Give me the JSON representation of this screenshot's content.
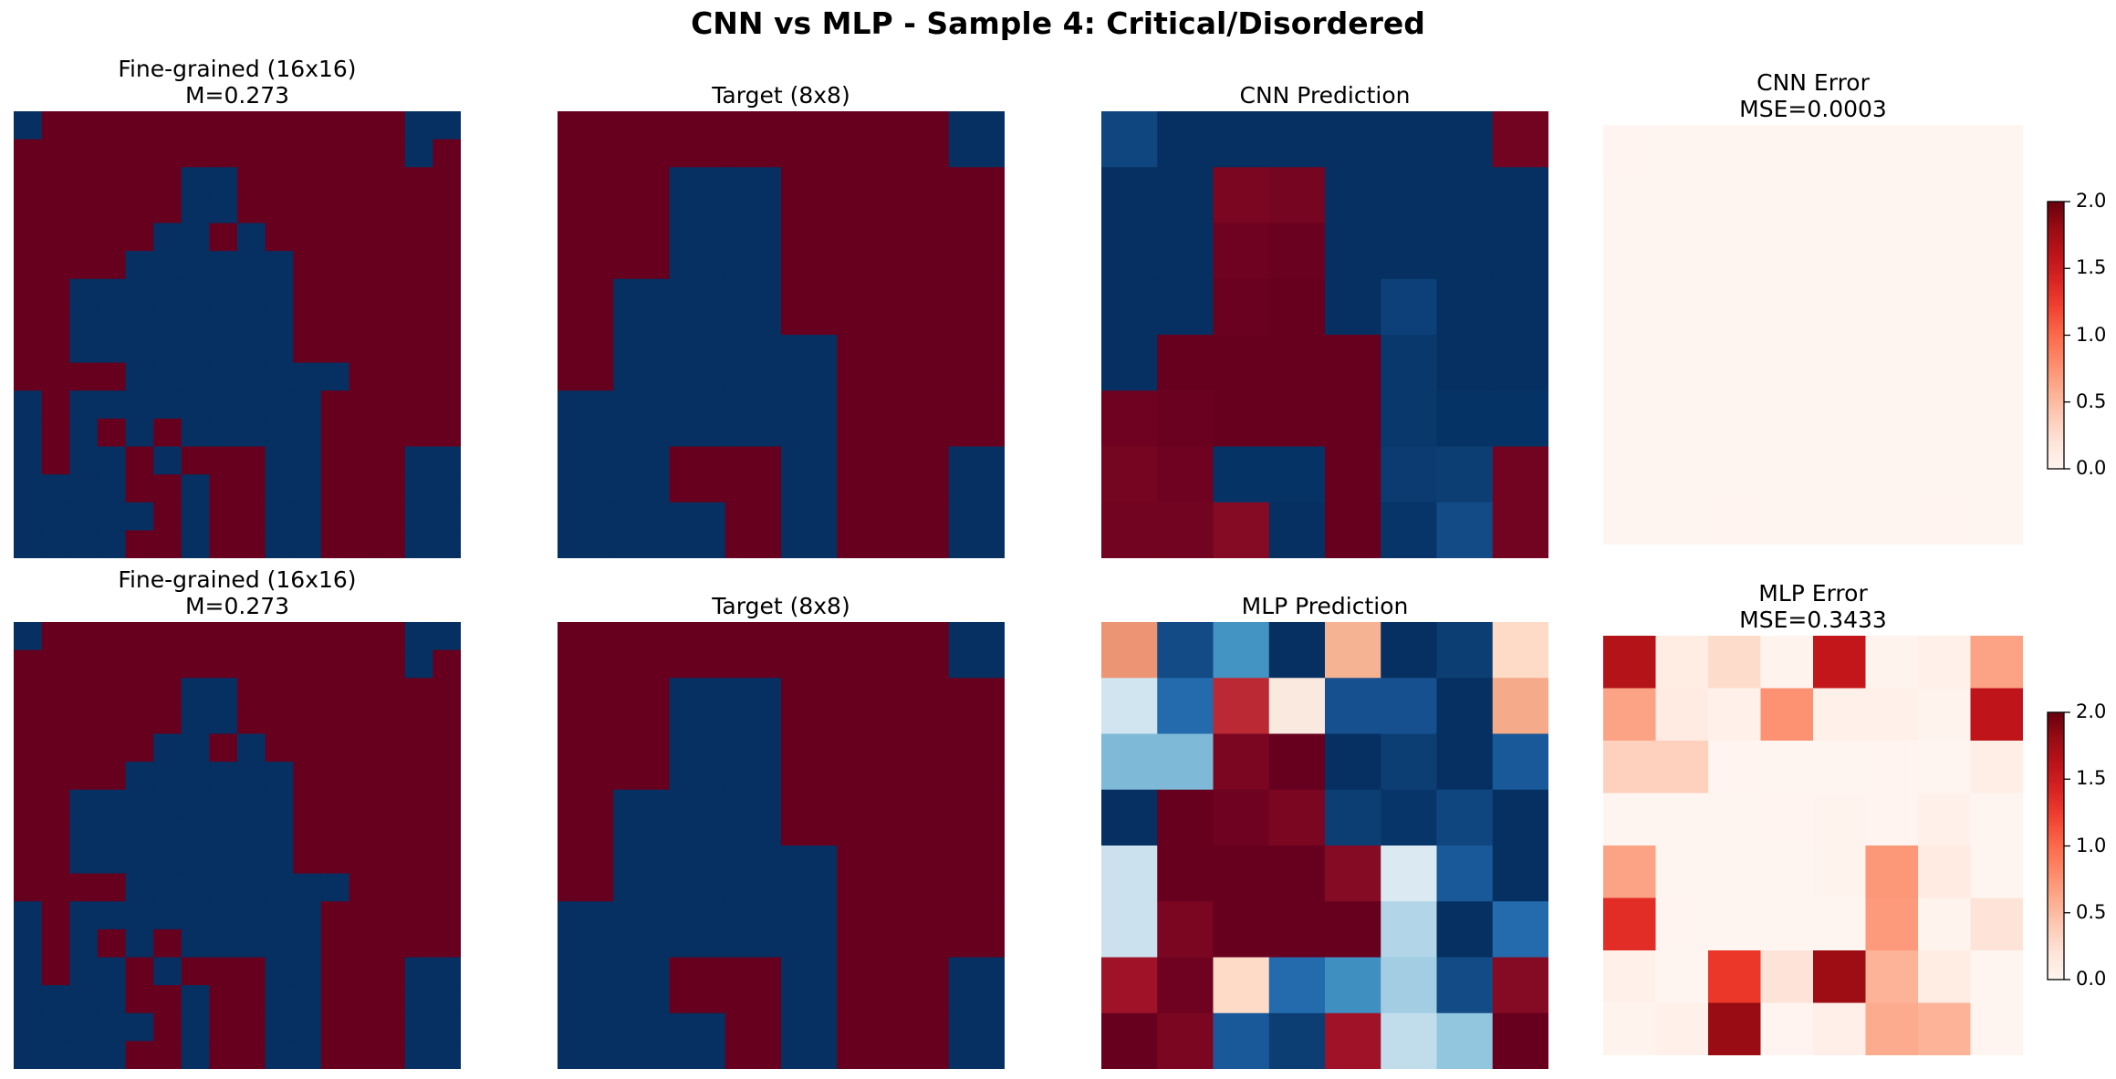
{
  "suptitle": "CNN vs MLP - Sample 4: Critical/Disordered",
  "fine_grid_16": [
    "1000000000000011",
    "0000000000000010",
    "0000001100000000",
    "0000001100000000",
    "0000011010000000",
    "0000111111000000",
    "0011111111000000",
    "0011111111000000",
    "0011111111000000",
    "0000111111110000",
    "1011111111100000",
    "1010101111100000",
    "1011010001100011",
    "1111001001100011",
    "1111101001100011",
    "1111001001100011"
  ],
  "target_grid_8": [
    "00000001",
    "00110000",
    "00110000",
    "01110000",
    "01111000",
    "11111000",
    "11001001",
    "11101001"
  ],
  "cnn_pred_grid": [
    [
      -0.92,
      -1,
      -1,
      -1,
      -1,
      -1,
      -1,
      0.97
    ],
    [
      -1,
      -1,
      0.95,
      0.96,
      -1,
      -1,
      -1,
      -1
    ],
    [
      -1,
      -1,
      0.98,
      0.99,
      -1,
      -1,
      -1,
      -1
    ],
    [
      -1,
      -1,
      0.99,
      1,
      -1,
      -0.94,
      -1,
      -1
    ],
    [
      -1,
      1,
      1,
      1,
      1,
      -0.97,
      -1,
      -1
    ],
    [
      0.98,
      0.99,
      1,
      1,
      1,
      -0.97,
      -0.99,
      -0.99
    ],
    [
      0.96,
      0.98,
      -0.99,
      -0.99,
      1,
      -0.96,
      -0.95,
      0.97
    ],
    [
      0.97,
      0.97,
      0.92,
      -1,
      1,
      -0.98,
      -0.9,
      0.97
    ]
  ],
  "mlp_pred_grid": [
    [
      0.45,
      -0.9,
      -0.6,
      -1,
      0.35,
      -1,
      -0.95,
      0.2
    ],
    [
      -0.2,
      -0.78,
      0.75,
      0.1,
      -0.88,
      -0.88,
      -1,
      0.38
    ],
    [
      -0.45,
      -0.45,
      0.95,
      1,
      -1,
      -0.95,
      -1,
      -0.85
    ],
    [
      -1,
      1,
      0.98,
      0.95,
      -0.95,
      -0.98,
      -0.92,
      -1
    ],
    [
      -0.22,
      1,
      1,
      1,
      0.92,
      -0.15,
      -0.85,
      -1
    ],
    [
      -0.22,
      0.95,
      1,
      1,
      1,
      -0.3,
      -1,
      -0.78
    ],
    [
      0.85,
      0.98,
      0.2,
      -0.78,
      -0.62,
      -0.35,
      -0.9,
      0.92
    ],
    [
      1,
      0.95,
      -0.85,
      -0.95,
      0.85,
      -0.25,
      -0.4,
      1
    ]
  ],
  "cnn_err_grid": [
    [
      0.006,
      0,
      0,
      0,
      0,
      0,
      0,
      0.001
    ],
    [
      0,
      0,
      0.003,
      0.002,
      0,
      0,
      0,
      0
    ],
    [
      0,
      0,
      0,
      0,
      0,
      0,
      0,
      0
    ],
    [
      0,
      0,
      0,
      0,
      0.003,
      0.004,
      0,
      0
    ],
    [
      0,
      0,
      0,
      0,
      0,
      0.001,
      0,
      0
    ],
    [
      0.001,
      0,
      0,
      0,
      0,
      0.001,
      0,
      0
    ],
    [
      0.002,
      0,
      0,
      0,
      0,
      0.002,
      0.003,
      0.001
    ],
    [
      0.001,
      0.001,
      0.006,
      0,
      0,
      0,
      0.01,
      0.001
    ]
  ],
  "mlp_err_grid": [
    [
      1.65,
      0.1,
      0.28,
      0.02,
      1.55,
      0.02,
      0.06,
      0.65
    ],
    [
      0.65,
      0.12,
      0.05,
      0.75,
      0.05,
      0.05,
      0.02,
      1.58
    ],
    [
      0.35,
      0.35,
      0.01,
      0,
      0,
      0.01,
      0,
      0.08
    ],
    [
      0,
      0,
      0,
      0.01,
      0.02,
      0.01,
      0.05,
      0
    ],
    [
      0.65,
      0,
      0,
      0,
      0.02,
      0.72,
      0.12,
      0
    ],
    [
      1.35,
      0.01,
      0,
      0,
      0,
      0.7,
      0.02,
      0.2
    ],
    [
      0.05,
      0,
      1.28,
      0.2,
      1.78,
      0.55,
      0.1,
      0
    ],
    [
      0.02,
      0.05,
      1.8,
      0.01,
      0.07,
      0.6,
      0.55,
      0
    ]
  ],
  "chart_data": [
    {
      "type": "heatmap",
      "title": "Fine-grained (16x16)",
      "subtitle": "M=0.273",
      "colormap": "RdBu",
      "vlim": [
        -1,
        1
      ],
      "grid_ref": "fine_grid_16"
    },
    {
      "type": "heatmap",
      "title": "Target (8x8)",
      "colormap": "RdBu",
      "vlim": [
        -1,
        1
      ],
      "grid_ref": "target_grid_8"
    },
    {
      "type": "heatmap",
      "title": "CNN Prediction",
      "colormap": "RdBu",
      "vlim": [
        -1,
        1
      ],
      "grid_ref": "cnn_pred_grid"
    },
    {
      "type": "heatmap",
      "title": "CNN Error",
      "subtitle": "MSE=0.0003",
      "colormap": "Reds",
      "vlim": [
        0,
        2
      ],
      "grid_ref": "cnn_err_grid"
    },
    {
      "type": "heatmap",
      "title": "Fine-grained (16x16)",
      "subtitle": "M=0.273",
      "colormap": "RdBu",
      "vlim": [
        -1,
        1
      ],
      "grid_ref": "fine_grid_16"
    },
    {
      "type": "heatmap",
      "title": "Target (8x8)",
      "colormap": "RdBu",
      "vlim": [
        -1,
        1
      ],
      "grid_ref": "target_grid_8"
    },
    {
      "type": "heatmap",
      "title": "MLP Prediction",
      "colormap": "RdBu",
      "vlim": [
        -1,
        1
      ],
      "grid_ref": "mlp_pred_grid"
    },
    {
      "type": "heatmap",
      "title": "MLP Error",
      "subtitle": "MSE=0.3433",
      "colormap": "Reds",
      "vlim": [
        0,
        2
      ],
      "grid_ref": "mlp_err_grid"
    }
  ],
  "colorbar": {
    "ticks": [
      "0.0",
      "0.5",
      "1.0",
      "1.5",
      "2.0"
    ],
    "tick_values": [
      0,
      0.5,
      1,
      1.5,
      2
    ]
  },
  "colors": {
    "spin_up": "#67001f",
    "spin_down": "#053061"
  }
}
